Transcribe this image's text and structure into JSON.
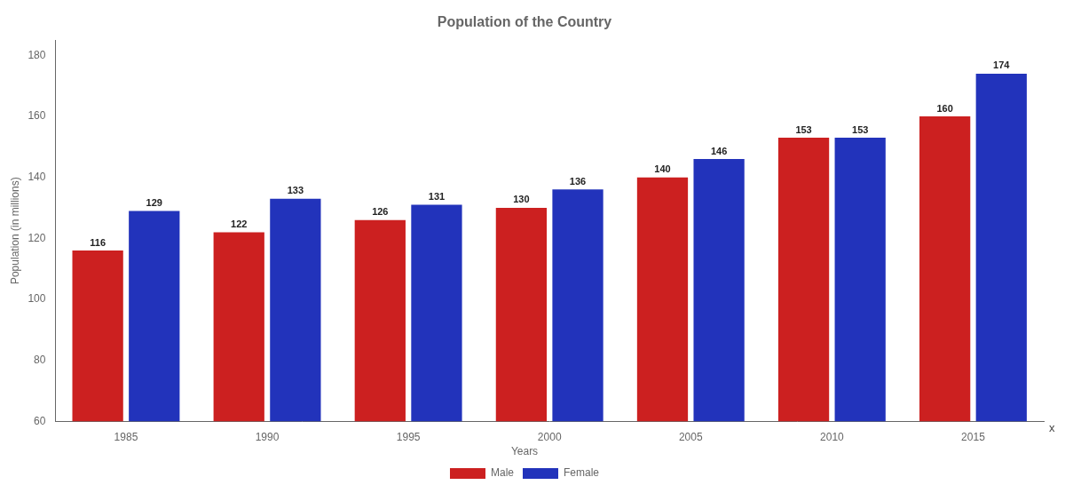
{
  "chart_data": {
    "type": "bar",
    "title": "Population of the Country",
    "xlabel": "Years",
    "ylabel": "Population (in millions)",
    "categories": [
      1985,
      1990,
      1995,
      2000,
      2005,
      2010,
      2015
    ],
    "series": [
      {
        "name": "Male",
        "color": "#cc2020",
        "values": [
          116,
          122,
          126,
          130,
          140,
          153,
          160
        ]
      },
      {
        "name": "Female",
        "color": "#2233bb",
        "values": [
          129,
          133,
          131,
          136,
          146,
          153,
          174
        ]
      }
    ],
    "ylim": [
      60,
      185
    ],
    "yticks": [
      60,
      80,
      100,
      120,
      140,
      160,
      180
    ],
    "annotations": [
      {
        "text": "x"
      }
    ],
    "data_labels": true,
    "grid": false,
    "legend": "bottom"
  }
}
